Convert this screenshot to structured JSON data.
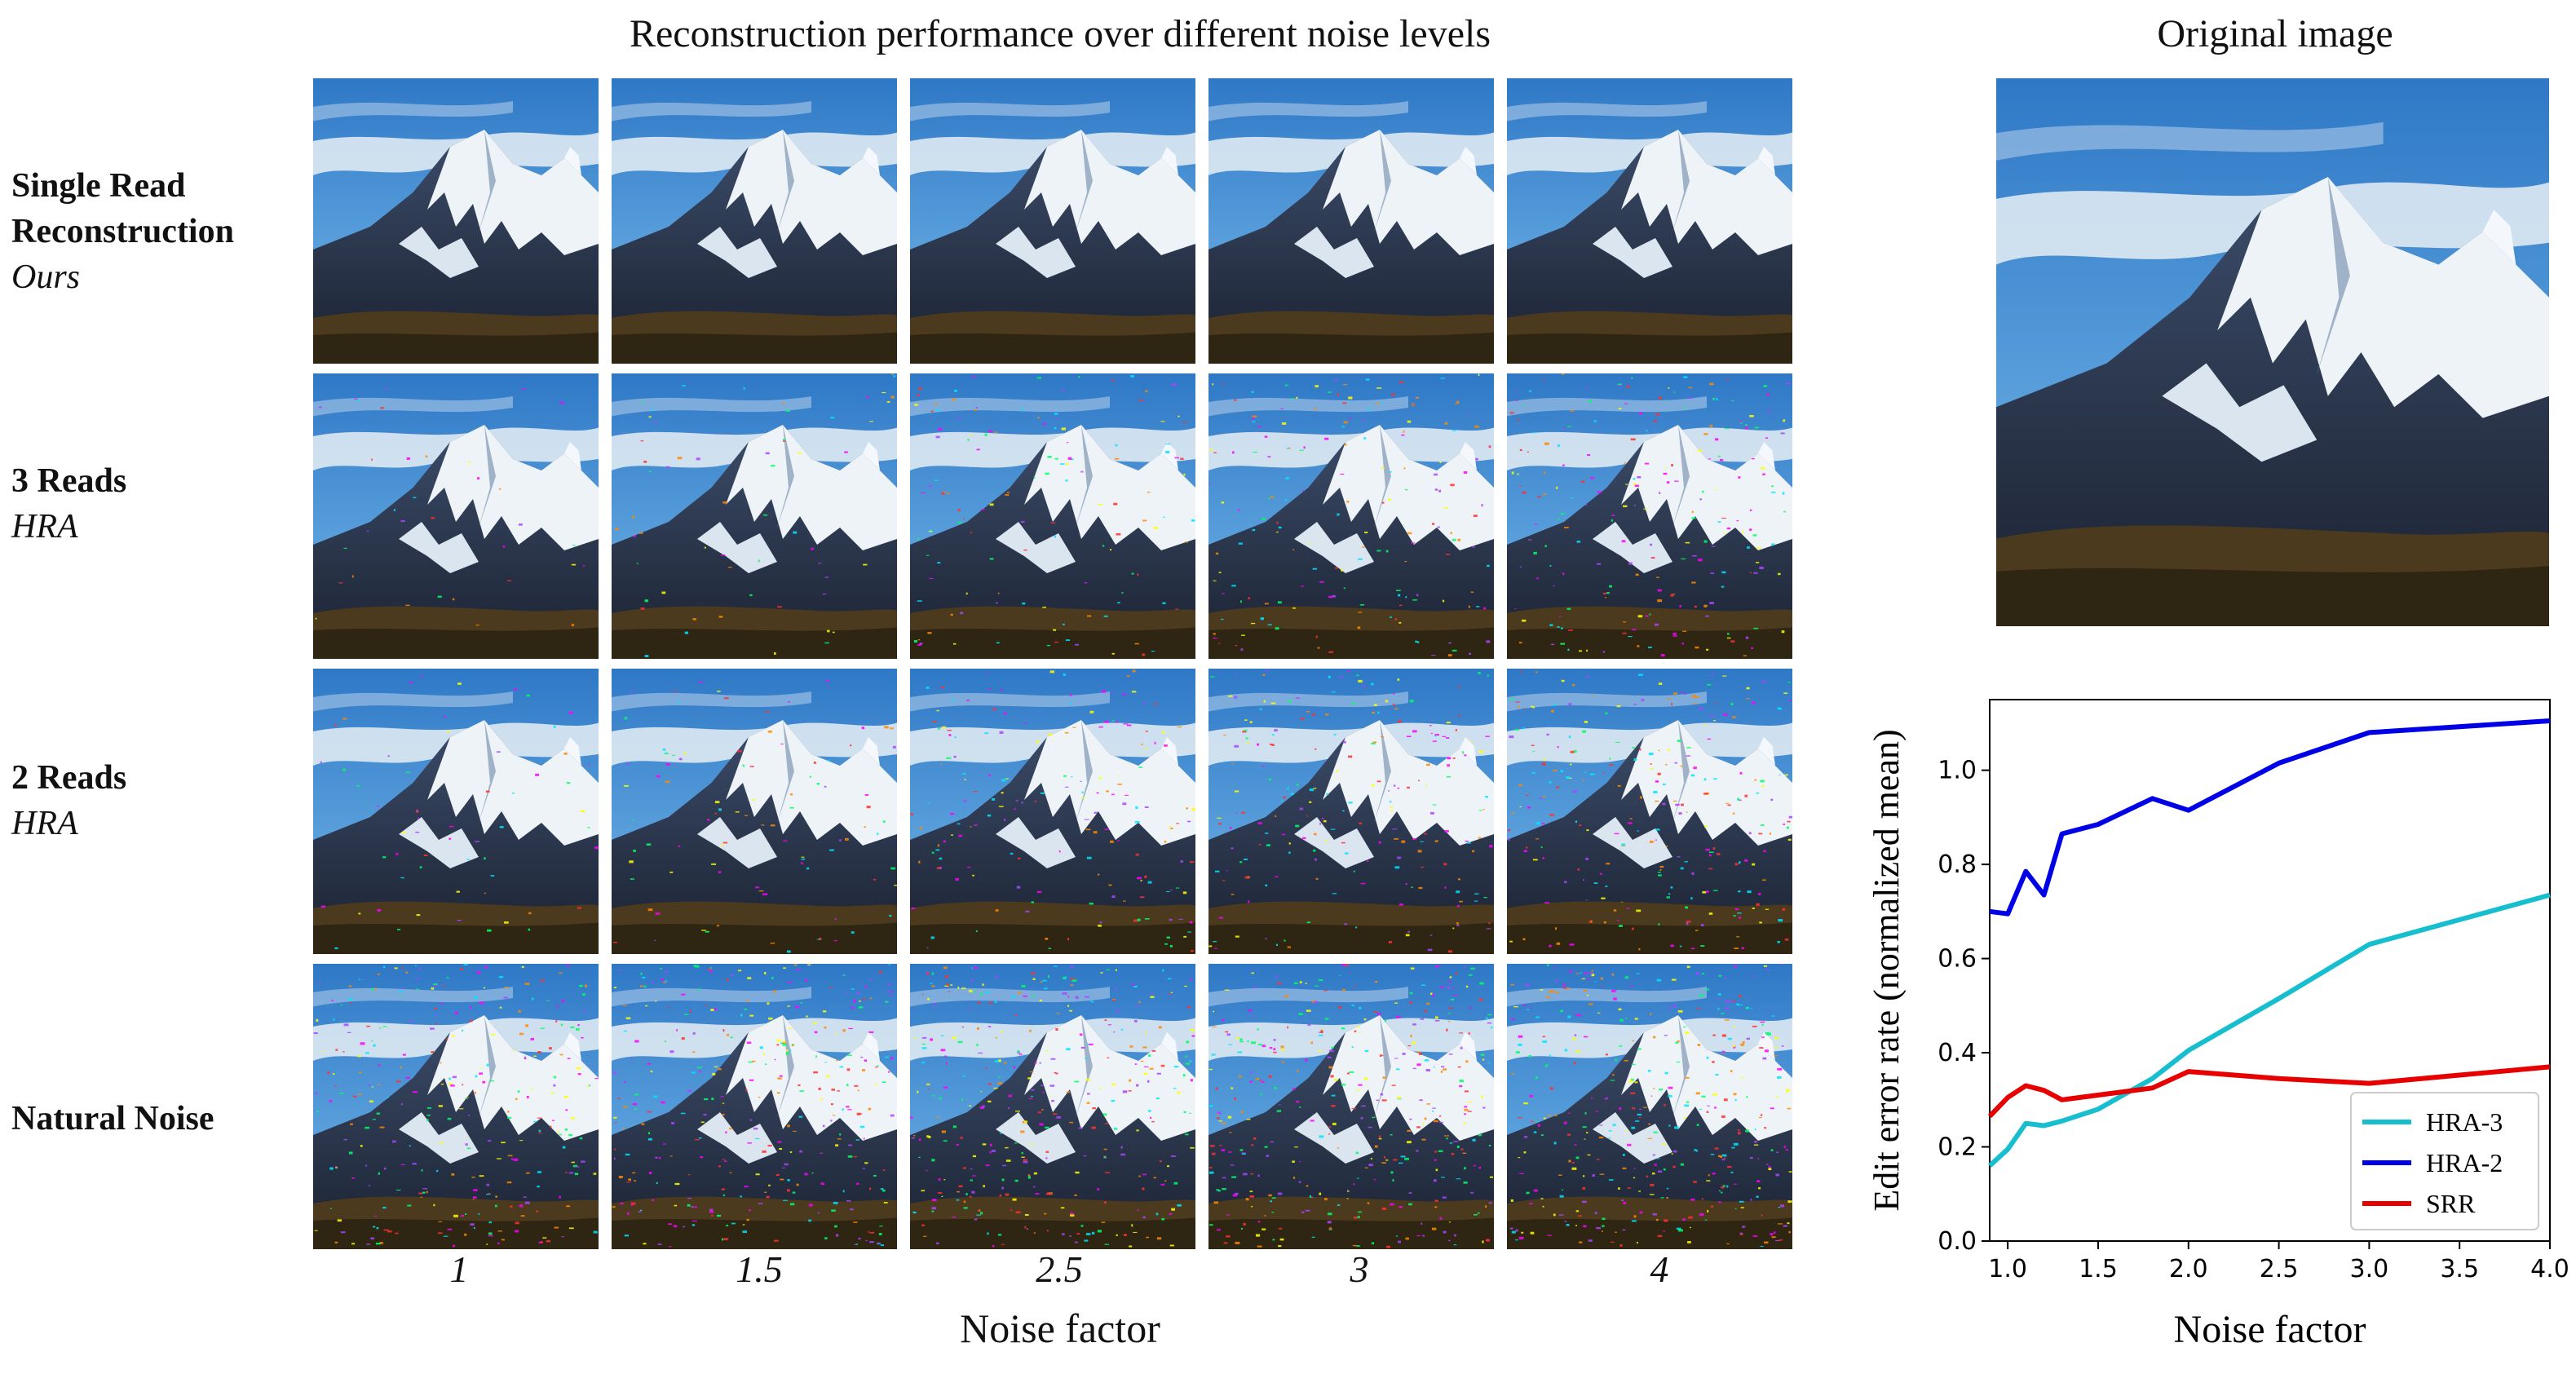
{
  "grid": {
    "title": "Reconstruction performance over different noise levels",
    "x_label": "Noise factor",
    "noise_factors": [
      "1",
      "1.5",
      "2.5",
      "3",
      "4"
    ],
    "rows": [
      {
        "title_line1": "Single Read",
        "title_line2": "Reconstruction",
        "subtitle": "Ours",
        "noise_level": [
          0,
          0,
          0,
          0,
          0
        ]
      },
      {
        "title_line1": "3 Reads",
        "title_line2": "",
        "subtitle": "HRA",
        "noise_level": [
          0.08,
          0.14,
          0.3,
          0.4,
          0.5
        ]
      },
      {
        "title_line1": "2 Reads",
        "title_line2": "",
        "subtitle": "HRA",
        "noise_level": [
          0.14,
          0.22,
          0.4,
          0.5,
          0.6
        ]
      },
      {
        "title_line1": "Natural Noise",
        "title_line2": "",
        "subtitle": "",
        "noise_level": [
          0.7,
          0.78,
          0.85,
          0.9,
          0.95
        ]
      }
    ]
  },
  "original": {
    "title": "Original image"
  },
  "chart_data": {
    "type": "line",
    "title": "",
    "xlabel": "Noise factor",
    "ylabel": "Edit error rate (normalized mean)",
    "xlim": [
      0.9,
      4.0
    ],
    "ylim": [
      0.0,
      1.15
    ],
    "xticks": [
      1.0,
      1.5,
      2.0,
      2.5,
      3.0,
      3.5,
      4.0
    ],
    "yticks": [
      0.0,
      0.2,
      0.4,
      0.6,
      0.8,
      1.0
    ],
    "grid": false,
    "legend_position": "lower-right",
    "series": [
      {
        "name": "HRA-3",
        "color": "#17becf",
        "x": [
          0.9,
          1.0,
          1.1,
          1.2,
          1.25,
          1.3,
          1.5,
          1.8,
          2.0,
          2.5,
          3.0,
          4.0
        ],
        "y": [
          0.16,
          0.195,
          0.25,
          0.245,
          0.25,
          0.255,
          0.28,
          0.345,
          0.405,
          0.515,
          0.63,
          0.735
        ]
      },
      {
        "name": "HRA-2",
        "color": "#0000e6",
        "x": [
          0.9,
          1.0,
          1.1,
          1.2,
          1.3,
          1.5,
          1.8,
          2.0,
          2.5,
          3.0,
          4.0
        ],
        "y": [
          0.7,
          0.695,
          0.785,
          0.735,
          0.865,
          0.885,
          0.94,
          0.915,
          1.015,
          1.08,
          1.105
        ]
      },
      {
        "name": "SRR",
        "color": "#e60000",
        "x": [
          0.9,
          1.0,
          1.1,
          1.2,
          1.3,
          1.5,
          1.8,
          2.0,
          2.5,
          3.0,
          4.0
        ],
        "y": [
          0.265,
          0.305,
          0.33,
          0.32,
          0.3,
          0.31,
          0.325,
          0.36,
          0.345,
          0.335,
          0.37
        ]
      }
    ]
  }
}
